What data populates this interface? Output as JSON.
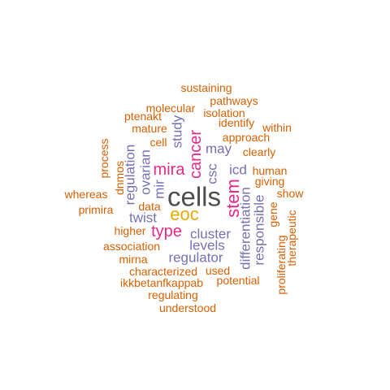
{
  "colors": {
    "orange": "#D95F02",
    "purple": "#7570B3",
    "pink": "#E7298A",
    "gold": "#E6AB02",
    "gray": "#4D4D4D"
  },
  "words": {
    "cells": "cells",
    "stem": "stem",
    "eoc": "eoc",
    "cancer": "cancer",
    "mira": "mira",
    "type": "type",
    "regulator": "regulator",
    "cluster": "cluster",
    "levels": "levels",
    "twist": "twist",
    "may": "may",
    "responsible": "responsible",
    "differentiation": "differentiation",
    "regulation": "regulation",
    "ovarian": "ovarian",
    "study": "study",
    "csc": "csc",
    "icd": "icd",
    "mir": "mir",
    "sustaining": "sustaining",
    "pathways": "pathways",
    "molecular": "molecular",
    "isolation": "isolation",
    "ptenakt": "ptenakt",
    "identify": "identify",
    "within": "within",
    "mature": "mature",
    "approach": "approach",
    "cell": "cell",
    "clearly": "clearly",
    "process": "process",
    "human": "human",
    "giving": "giving",
    "dnmos": "dnmos",
    "whereas": "whereas",
    "show": "show",
    "primira": "primira",
    "data": "data",
    "gene": "gene",
    "therapeutic": "therapeutic",
    "higher": "higher",
    "proliferating": "proliferating",
    "association": "association",
    "mirna": "mirna",
    "characterized": "characterized",
    "used": "used",
    "ikkbetanfkappab": "ikkbetanfkappab",
    "potential": "potential",
    "regulating": "regulating",
    "understood": "understood"
  }
}
